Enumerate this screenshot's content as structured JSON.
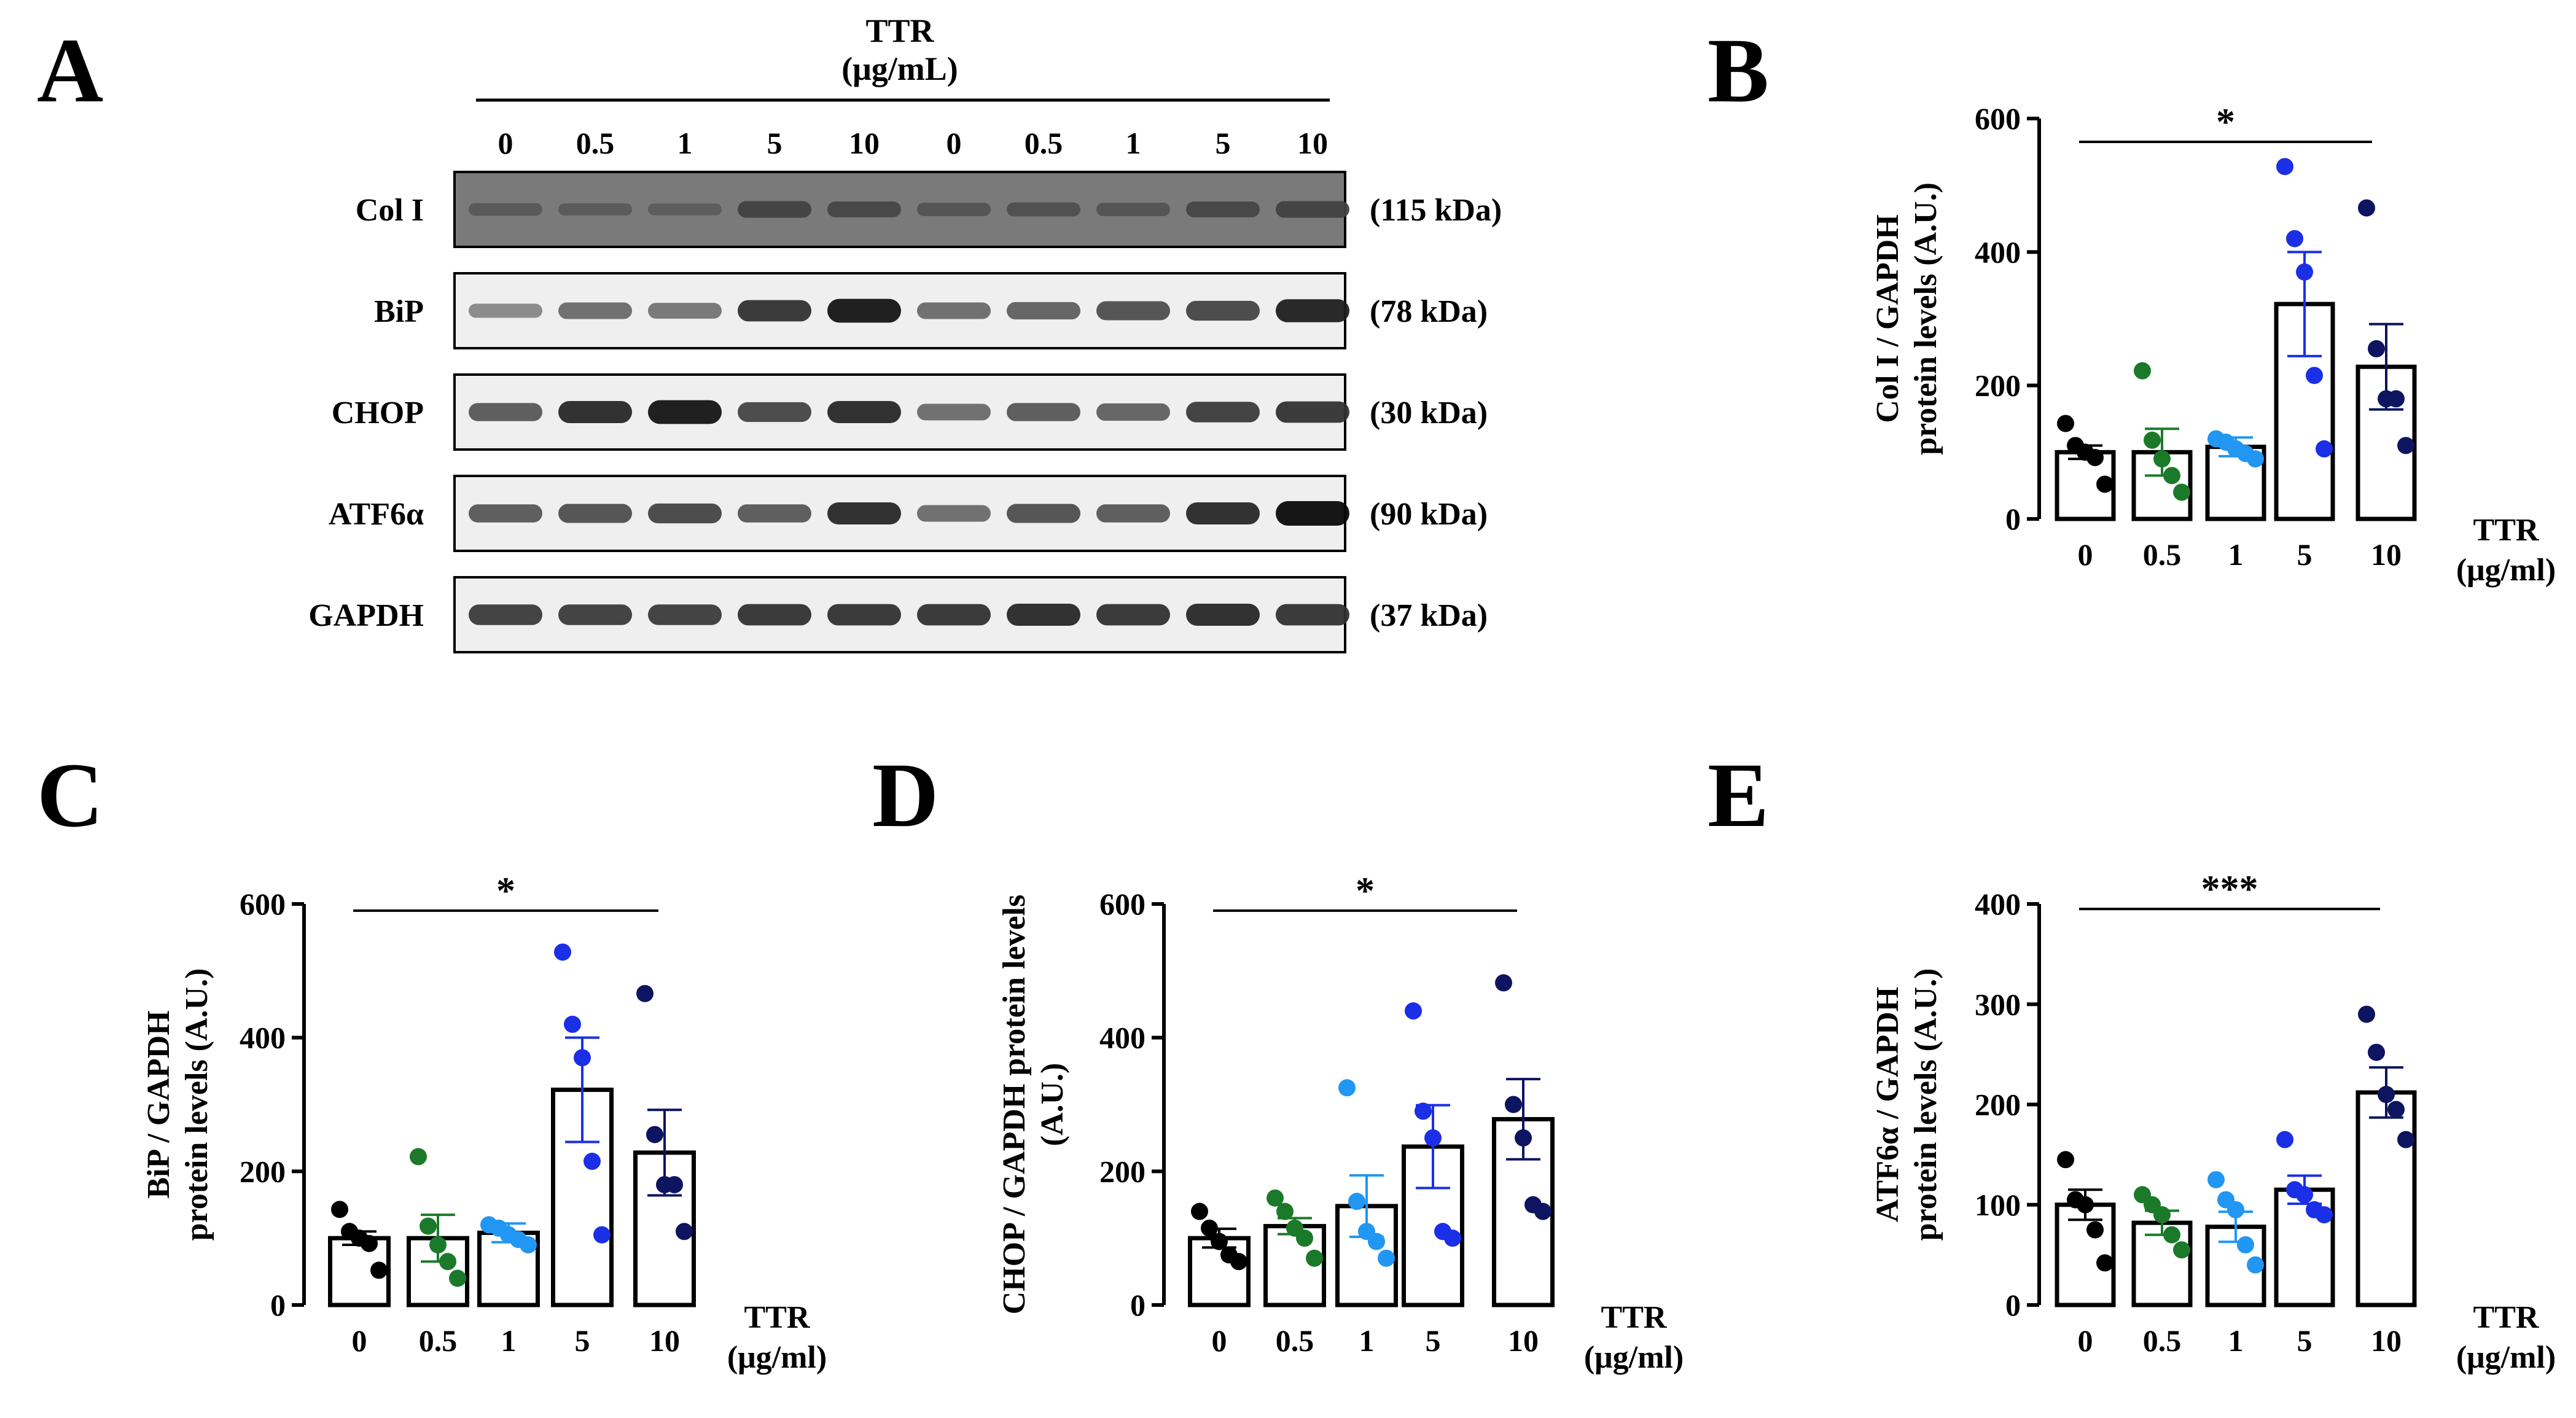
{
  "panel_a": {
    "letter": "A",
    "treatment_title": "TTR",
    "treatment_unit": "(μg/mL)",
    "lanes": [
      "0",
      "0.5",
      "1",
      "5",
      "10",
      "0",
      "0.5",
      "1",
      "5",
      "10"
    ],
    "blots": [
      {
        "protein": "Col I",
        "size": "(115 kDa)",
        "band_intensity": [
          0.25,
          0.22,
          0.2,
          0.5,
          0.45,
          0.3,
          0.35,
          0.3,
          0.45,
          0.5
        ]
      },
      {
        "protein": "BiP",
        "size": "(78 kDa)",
        "band_intensity": [
          0.35,
          0.5,
          0.45,
          0.8,
          0.95,
          0.5,
          0.55,
          0.65,
          0.7,
          0.9
        ]
      },
      {
        "protein": "CHOP",
        "size": "(30 kDa)",
        "band_intensity": [
          0.6,
          0.85,
          0.95,
          0.7,
          0.85,
          0.5,
          0.6,
          0.55,
          0.75,
          0.8
        ]
      },
      {
        "protein": "ATF6α",
        "size": "(90 kDa)",
        "band_intensity": [
          0.6,
          0.65,
          0.7,
          0.6,
          0.85,
          0.5,
          0.65,
          0.6,
          0.85,
          1.0
        ]
      },
      {
        "protein": "GAPDH",
        "size": "(37 kDa)",
        "band_intensity": [
          0.75,
          0.75,
          0.75,
          0.8,
          0.8,
          0.8,
          0.85,
          0.8,
          0.85,
          0.8
        ]
      }
    ]
  },
  "chart_data": [
    {
      "panel": "B",
      "type": "bar",
      "ylabel_line1": "Col I / GAPDH",
      "ylabel_line2": "protein levels (A.U.)",
      "xlabel_line1": "TTR",
      "xlabel_line2": "(μg/ml)",
      "categories": [
        "0",
        "0.5",
        "1",
        "5",
        "10"
      ],
      "values": [
        100,
        100,
        108,
        322,
        228
      ],
      "sem": [
        10,
        35,
        14,
        78,
        64
      ],
      "points": [
        [
          143,
          110,
          100,
          92,
          52
        ],
        [
          222,
          118,
          90,
          65,
          40
        ],
        [
          120,
          115,
          105,
          98,
          90
        ],
        [
          528,
          420,
          370,
          215,
          105
        ],
        [
          466,
          255,
          180,
          180,
          110
        ]
      ],
      "yticks": [
        0,
        200,
        400,
        600
      ],
      "ylim": [
        0,
        600
      ],
      "significance": "*",
      "sig_y": 565
    },
    {
      "panel": "C",
      "type": "bar",
      "ylabel_line1": "BiP / GAPDH",
      "ylabel_line2": "protein levels (A.U.)",
      "xlabel_line1": "TTR",
      "xlabel_line2": "(μg/ml)",
      "categories": [
        "0",
        "0.5",
        "1",
        "5",
        "10"
      ],
      "values": [
        100,
        100,
        108,
        322,
        228
      ],
      "sem": [
        10,
        35,
        14,
        78,
        64
      ],
      "points": [
        [
          143,
          110,
          100,
          92,
          52
        ],
        [
          222,
          118,
          90,
          65,
          40
        ],
        [
          120,
          115,
          105,
          98,
          90
        ],
        [
          528,
          420,
          370,
          215,
          105
        ],
        [
          466,
          255,
          180,
          180,
          110
        ]
      ],
      "yticks": [
        0,
        200,
        400,
        600
      ],
      "ylim": [
        0,
        600
      ],
      "significance": "*",
      "sig_y": 590
    },
    {
      "panel": "D",
      "type": "bar",
      "ylabel_line1": "CHOP / GAPDH protein levels",
      "ylabel_line2": "(A.U.)",
      "xlabel_line1": "TTR",
      "xlabel_line2": "(μg/ml)",
      "categories": [
        "0",
        "0.5",
        "1",
        "5",
        "10"
      ],
      "values": [
        100,
        118,
        148,
        237,
        278
      ],
      "sem": [
        14,
        12,
        46,
        62,
        60
      ],
      "points": [
        [
          140,
          115,
          95,
          75,
          65
        ],
        [
          160,
          140,
          115,
          100,
          70
        ],
        [
          325,
          155,
          110,
          95,
          70
        ],
        [
          440,
          290,
          250,
          110,
          100
        ],
        [
          482,
          300,
          250,
          150,
          140
        ]
      ],
      "yticks": [
        0,
        200,
        400,
        600
      ],
      "ylim": [
        0,
        600
      ],
      "significance": "*",
      "sig_y": 590
    },
    {
      "panel": "E",
      "type": "bar",
      "ylabel_line1": "ATF6α / GAPDH",
      "ylabel_line2": "protein levels (A.U.)",
      "xlabel_line1": "TTR",
      "xlabel_line2": "(μg/ml)",
      "categories": [
        "0",
        "0.5",
        "1",
        "5",
        "10"
      ],
      "values": [
        100,
        82,
        78,
        115,
        212
      ],
      "sem": [
        15,
        12,
        15,
        14,
        25
      ],
      "points": [
        [
          145,
          105,
          100,
          75,
          42
        ],
        [
          110,
          100,
          90,
          70,
          55
        ],
        [
          125,
          105,
          95,
          60,
          40
        ],
        [
          165,
          115,
          110,
          95,
          90
        ],
        [
          290,
          252,
          210,
          195,
          165
        ]
      ],
      "yticks": [
        0,
        100,
        200,
        300,
        400
      ],
      "ylim": [
        0,
        400
      ],
      "significance": "***",
      "sig_y": 395
    }
  ],
  "colors": {
    "group_0": "#000000",
    "group_0.5": "#1b7a2a",
    "group_1": "#2196f3",
    "group_5": "#1a2fe6",
    "group_10": "#0d1460",
    "blot_background": "#efefef",
    "band": "#111111"
  }
}
